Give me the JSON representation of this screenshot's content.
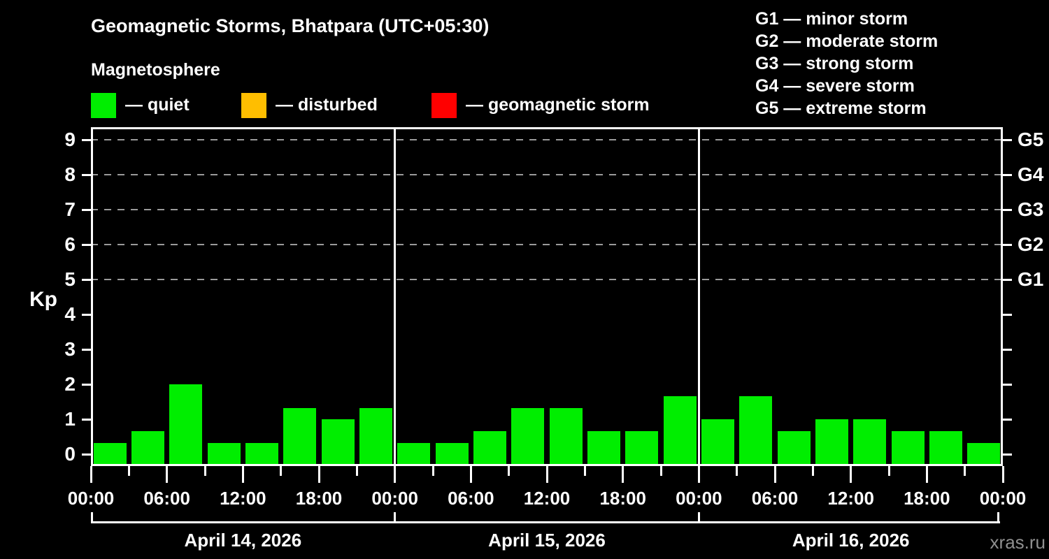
{
  "title": "Geomagnetic Storms, Bhatpara (UTC+05:30)",
  "subtitle": "Magnetosphere",
  "activity_legend": [
    {
      "name": "quiet",
      "label": "— quiet",
      "color": "#00ee00"
    },
    {
      "name": "disturbed",
      "label": "— disturbed",
      "color": "#ffbe00"
    },
    {
      "name": "geomagnetic-storm",
      "label": "— geomagnetic storm",
      "color": "#ff0000"
    }
  ],
  "storm_scale_legend": [
    "G1 — minor storm",
    "G2 — moderate storm",
    "G3 — strong storm",
    "G4 — severe storm",
    "G5 — extreme storm"
  ],
  "watermark": "xras.ru",
  "chart_data": {
    "type": "bar",
    "title": "Geomagnetic Storms, Bhatpara (UTC+05:30)",
    "subtitle": "Magnetosphere",
    "ylabel": "Kp",
    "ylim": [
      0,
      9
    ],
    "yticks": [
      0,
      1,
      2,
      3,
      4,
      5,
      6,
      7,
      8,
      9
    ],
    "gridlines_at": [
      5,
      6,
      7,
      8,
      9
    ],
    "grid": "dashed horizontal lines at storm levels only",
    "legend_position": "top",
    "right_axis_labels": [
      {
        "kp": 5,
        "label": "G1"
      },
      {
        "kp": 6,
        "label": "G2"
      },
      {
        "kp": 7,
        "label": "G3"
      },
      {
        "kp": 8,
        "label": "G4"
      },
      {
        "kp": 9,
        "label": "G5"
      }
    ],
    "x_tick_labels": [
      "00:00",
      "06:00",
      "12:00",
      "18:00",
      "00:00",
      "06:00",
      "12:00",
      "18:00",
      "00:00",
      "06:00",
      "12:00",
      "18:00",
      "00:00"
    ],
    "bar_color": "#00ee00",
    "bar_interval_hours": 3,
    "days": [
      {
        "date": "April 14, 2026",
        "kp_values": [
          0.33,
          0.67,
          2.0,
          0.33,
          0.33,
          1.33,
          1.0,
          1.33
        ]
      },
      {
        "date": "April 15, 2026",
        "kp_values": [
          0.33,
          0.33,
          0.67,
          1.33,
          1.33,
          0.67,
          0.67,
          1.67
        ]
      },
      {
        "date": "April 16, 2026",
        "kp_values": [
          1.0,
          1.67,
          0.67,
          1.0,
          1.0,
          0.67,
          0.67,
          0.33
        ]
      }
    ]
  }
}
